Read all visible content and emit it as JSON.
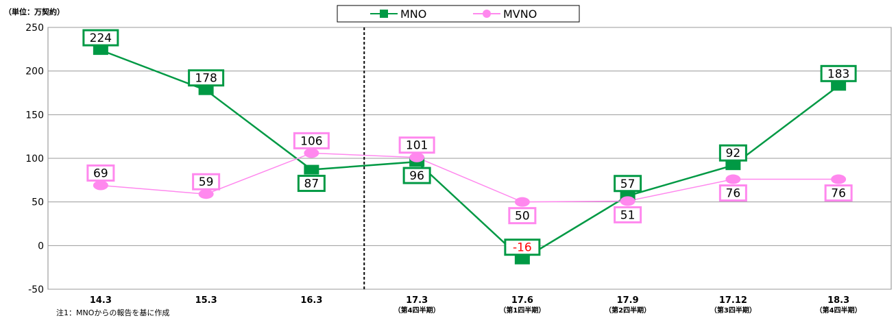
{
  "unit_label": "（単位：万契約）",
  "footnote": "注1：MNOからの報告を基に作成",
  "chart_data": {
    "type": "line",
    "title": "",
    "xlabel": "",
    "ylabel": "",
    "ylim": [
      -50,
      250
    ],
    "yticks": [
      -50,
      0,
      50,
      100,
      150,
      200,
      250
    ],
    "grid": true,
    "legend_position": "top-center",
    "categories": [
      "14.3",
      "15.3",
      "16.3",
      "17.3",
      "17.6",
      "17.9",
      "17.12",
      "18.3"
    ],
    "category_sublabels": [
      "",
      "",
      "",
      "（第4四半期）",
      "（第1四半期）",
      "（第2四半期）",
      "（第3四半期）",
      "（第4四半期）"
    ],
    "divider_after_index": 2,
    "series": [
      {
        "name": "MNO",
        "color": "#009944",
        "marker": "square",
        "values": [
          224,
          178,
          87,
          96,
          -16,
          57,
          92,
          183
        ],
        "labels": [
          "224",
          "178",
          "87",
          "96",
          "-16",
          "57",
          "92",
          "183"
        ],
        "label_positions": [
          "above",
          "above",
          "below",
          "below",
          "above",
          "above",
          "above",
          "above"
        ],
        "negative_label_color": "#ff0000"
      },
      {
        "name": "MVNO",
        "color": "#ff88ee",
        "marker": "circle",
        "values": [
          69,
          59,
          106,
          101,
          50,
          51,
          76,
          76
        ],
        "labels": [
          "69",
          "59",
          "106",
          "101",
          "50",
          "51",
          "76",
          "76"
        ],
        "label_positions": [
          "above",
          "above",
          "above",
          "above",
          "below",
          "below",
          "below",
          "below"
        ]
      }
    ]
  }
}
